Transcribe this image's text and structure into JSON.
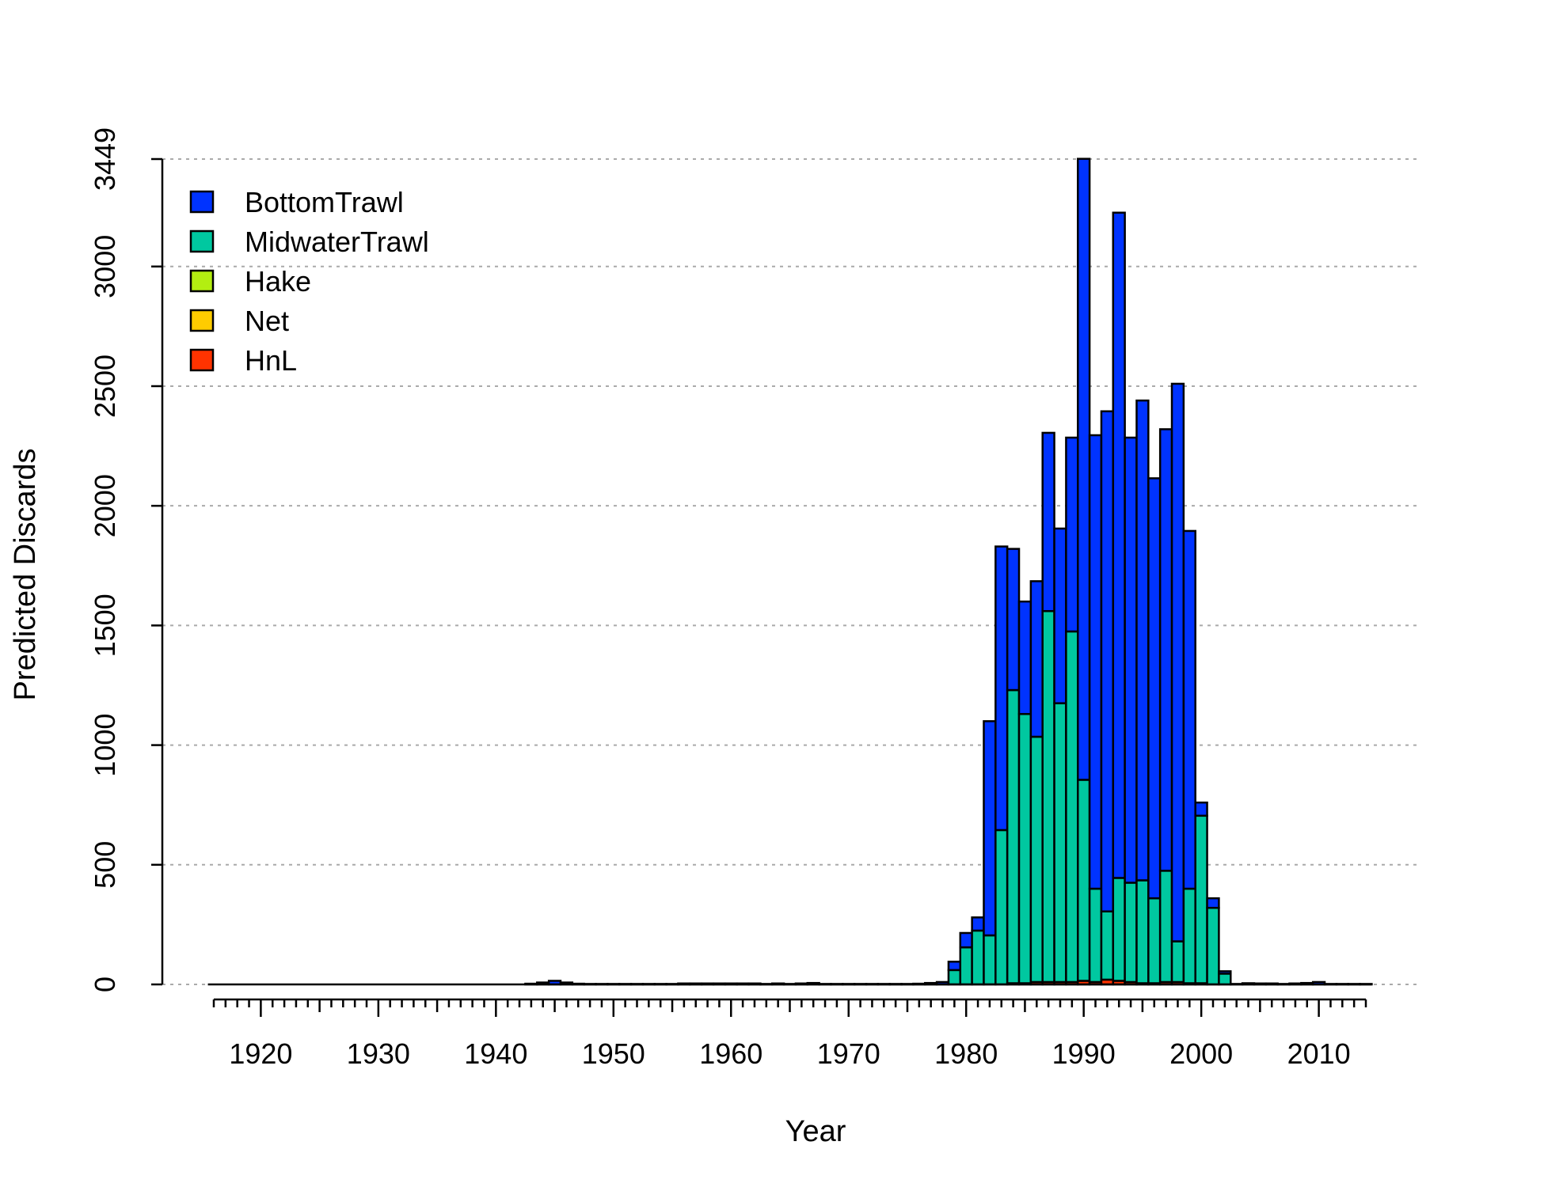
{
  "chart_data": {
    "type": "bar",
    "stacked": true,
    "xlabel": "Year",
    "ylabel": "Predicted Discards",
    "x": [
      1916,
      1917,
      1918,
      1919,
      1920,
      1921,
      1922,
      1923,
      1924,
      1925,
      1926,
      1927,
      1928,
      1929,
      1930,
      1931,
      1932,
      1933,
      1934,
      1935,
      1936,
      1937,
      1938,
      1939,
      1940,
      1941,
      1942,
      1943,
      1944,
      1945,
      1946,
      1947,
      1948,
      1949,
      1950,
      1951,
      1952,
      1953,
      1954,
      1955,
      1956,
      1957,
      1958,
      1959,
      1960,
      1961,
      1962,
      1963,
      1964,
      1965,
      1966,
      1967,
      1968,
      1969,
      1970,
      1971,
      1972,
      1973,
      1974,
      1975,
      1976,
      1977,
      1978,
      1979,
      1980,
      1981,
      1982,
      1983,
      1984,
      1985,
      1986,
      1987,
      1988,
      1989,
      1990,
      1991,
      1992,
      1993,
      1994,
      1995,
      1996,
      1997,
      1998,
      1999,
      2000,
      2001,
      2002,
      2003,
      2004,
      2005,
      2006,
      2007,
      2008,
      2009,
      2010,
      2011,
      2012,
      2013,
      2014
    ],
    "xlim": [
      1915,
      2014
    ],
    "ylim": [
      0,
      3449
    ],
    "yticks": [
      0,
      500,
      1000,
      1500,
      2000,
      2500,
      3000,
      3449
    ],
    "xticks": [
      1920,
      1930,
      1940,
      1950,
      1960,
      1970,
      1980,
      1990,
      2000,
      2010
    ],
    "grid": "horizontal dotted",
    "legend_position": "top-left",
    "series": [
      {
        "name": "HnL",
        "color": "#ff3300",
        "values": [
          0,
          0,
          0,
          0,
          0,
          0,
          0,
          0,
          0,
          0,
          0,
          0,
          0,
          0,
          0,
          0,
          0,
          0,
          0,
          0,
          0,
          0,
          0,
          0,
          0,
          0,
          0,
          0,
          0,
          0,
          0,
          0,
          0,
          0,
          0,
          0,
          0,
          0,
          0,
          0,
          0,
          0,
          0,
          0,
          0,
          0,
          0,
          0,
          0,
          0,
          0,
          0,
          0,
          0,
          0,
          0,
          0,
          0,
          0,
          0,
          0,
          0,
          0,
          0,
          0,
          0,
          0,
          0,
          5,
          5,
          10,
          10,
          10,
          10,
          15,
          10,
          20,
          15,
          10,
          5,
          5,
          10,
          10,
          5,
          5,
          0,
          0,
          0,
          0,
          0,
          0,
          0,
          0,
          0,
          0,
          0,
          0,
          0,
          0
        ]
      },
      {
        "name": "Net",
        "color": "#ffcc00",
        "values": [
          0,
          0,
          0,
          0,
          0,
          0,
          0,
          0,
          0,
          0,
          0,
          0,
          0,
          0,
          0,
          0,
          0,
          0,
          0,
          0,
          0,
          0,
          0,
          0,
          0,
          0,
          0,
          0,
          0,
          0,
          0,
          0,
          0,
          0,
          0,
          0,
          0,
          0,
          0,
          0,
          0,
          0,
          0,
          0,
          0,
          0,
          0,
          0,
          0,
          0,
          0,
          0,
          0,
          0,
          0,
          0,
          0,
          0,
          0,
          0,
          0,
          0,
          0,
          0,
          0,
          0,
          0,
          0,
          0,
          0,
          0,
          0,
          0,
          0,
          0,
          0,
          0,
          0,
          0,
          0,
          0,
          0,
          0,
          0,
          0,
          0,
          0,
          0,
          0,
          0,
          0,
          0,
          0,
          0,
          0,
          0,
          0,
          0,
          0
        ]
      },
      {
        "name": "Hake",
        "color": "#b3ee11",
        "values": [
          0,
          0,
          0,
          0,
          0,
          0,
          0,
          0,
          0,
          0,
          0,
          0,
          0,
          0,
          0,
          0,
          0,
          0,
          0,
          0,
          0,
          0,
          0,
          0,
          0,
          0,
          0,
          0,
          0,
          0,
          0,
          0,
          0,
          0,
          0,
          0,
          0,
          0,
          0,
          0,
          0,
          0,
          0,
          0,
          0,
          0,
          0,
          0,
          0,
          0,
          0,
          0,
          0,
          0,
          0,
          0,
          0,
          0,
          0,
          0,
          0,
          0,
          0,
          0,
          0,
          0,
          0,
          0,
          0,
          0,
          0,
          0,
          0,
          0,
          0,
          0,
          0,
          0,
          0,
          0,
          0,
          0,
          0,
          0,
          0,
          0,
          0,
          0,
          0,
          0,
          0,
          0,
          0,
          0,
          0,
          0,
          0,
          0,
          0
        ]
      },
      {
        "name": "MidwaterTrawl",
        "color": "#00c8a0",
        "values": [
          0,
          0,
          0,
          0,
          0,
          0,
          0,
          0,
          0,
          0,
          0,
          0,
          0,
          0,
          0,
          0,
          0,
          0,
          0,
          0,
          0,
          0,
          0,
          0,
          0,
          0,
          0,
          0,
          0,
          0,
          0,
          0,
          0,
          0,
          0,
          0,
          0,
          0,
          0,
          0,
          0,
          0,
          0,
          0,
          0,
          0,
          0,
          0,
          0,
          0,
          0,
          0,
          0,
          0,
          0,
          0,
          0,
          0,
          0,
          0,
          0,
          0,
          0,
          60,
          155,
          225,
          205,
          645,
          1225,
          1125,
          1025,
          1550,
          1165,
          1465,
          840,
          390,
          285,
          430,
          415,
          430,
          355,
          465,
          170,
          395,
          700,
          320,
          45,
          0,
          0,
          0,
          0,
          0,
          0,
          0,
          0,
          0,
          0,
          0,
          0
        ]
      },
      {
        "name": "BottomTrawl",
        "color": "#0033ff",
        "values": [
          0,
          0,
          0,
          0,
          0,
          0,
          0,
          0,
          0,
          0,
          0,
          0,
          0,
          0,
          0,
          0,
          0,
          0,
          0,
          0,
          0,
          0,
          0,
          0,
          0,
          0,
          0,
          3,
          8,
          15,
          8,
          3,
          2,
          2,
          2,
          2,
          2,
          2,
          2,
          2,
          4,
          4,
          4,
          4,
          4,
          4,
          4,
          2,
          4,
          2,
          4,
          6,
          2,
          2,
          2,
          2,
          2,
          2,
          2,
          2,
          3,
          6,
          10,
          35,
          60,
          55,
          895,
          1185,
          590,
          470,
          650,
          745,
          730,
          810,
          2595,
          1895,
          2090,
          2780,
          1860,
          2005,
          1755,
          1845,
          2330,
          1495,
          55,
          40,
          10,
          2,
          5,
          4,
          4,
          2,
          4,
          6,
          10,
          2,
          2,
          2,
          2
        ]
      }
    ]
  }
}
